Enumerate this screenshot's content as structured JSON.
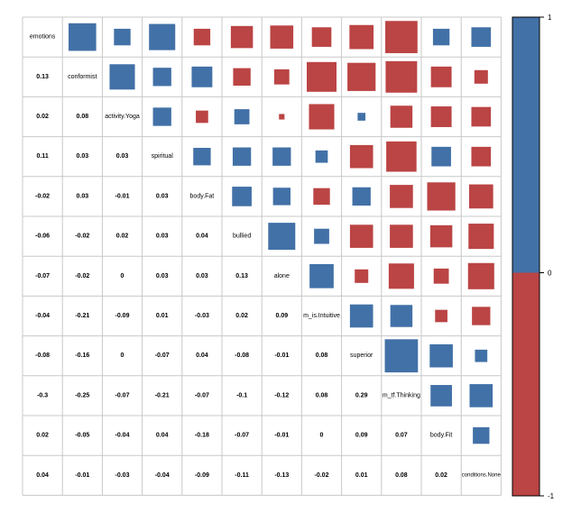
{
  "chart_data": {
    "type": "heatmap",
    "variables": [
      "emotions",
      "conformist",
      "activity.Yoga",
      "spiritual",
      "body.Fat",
      "bullied",
      "alone",
      "m_is.Intuitive",
      "superior",
      "m_tf.Thinking",
      "body.Fit",
      "conditions.None"
    ],
    "lower_labels": [
      [],
      [
        "0.13"
      ],
      [
        "0.02",
        "0.08"
      ],
      [
        "0.11",
        "0.03",
        "0.03"
      ],
      [
        "-0.02",
        "0.03",
        "-0.01",
        "0.03"
      ],
      [
        "-0.06",
        "-0.02",
        "0.02",
        "0.03",
        "0.04"
      ],
      [
        "-0.07",
        "-0.02",
        "0",
        "0.03",
        "0.03",
        "0.13"
      ],
      [
        "-0.04",
        "-0.21",
        "-0.09",
        "0.01",
        "-0.03",
        "0.02",
        "0.09"
      ],
      [
        "-0.08",
        "-0.16",
        "0",
        "-0.07",
        "0.04",
        "-0.08",
        "-0.01",
        "0.08"
      ],
      [
        "-0.3",
        "-0.25",
        "-0.07",
        "-0.21",
        "-0.07",
        "-0.1",
        "-0.12",
        "0.08",
        "0.29"
      ],
      [
        "0.02",
        "-0.05",
        "-0.04",
        "0.04",
        "-0.18",
        "-0.07",
        "-0.01",
        "0",
        "0.09",
        "0.07"
      ],
      [
        "0.04",
        "-0.01",
        "-0.03",
        "-0.04",
        "-0.09",
        "-0.11",
        "-0.13",
        "-0.02",
        "0.01",
        "0.08",
        "0.02"
      ]
    ],
    "colorbar": {
      "range": [
        -1,
        1
      ],
      "tick_labels": [
        "1",
        "0",
        "-1"
      ],
      "positive_color": "#4271a7",
      "negative_color": "#bb4444"
    },
    "upper_marks": [
      [
        {
          "col": 1,
          "value": 0.5
        },
        {
          "col": 2,
          "value": 0.18
        },
        {
          "col": 3,
          "value": 0.45
        },
        {
          "col": 4,
          "value": -0.18
        },
        {
          "col": 5,
          "value": -0.32
        },
        {
          "col": 6,
          "value": -0.35
        },
        {
          "col": 7,
          "value": -0.25
        },
        {
          "col": 8,
          "value": -0.38
        },
        {
          "col": 9,
          "value": -0.68
        },
        {
          "col": 10,
          "value": 0.18
        },
        {
          "col": 11,
          "value": 0.25
        }
      ],
      [
        {
          "col": 2,
          "value": 0.42
        },
        {
          "col": 3,
          "value": 0.22
        },
        {
          "col": 4,
          "value": 0.28
        },
        {
          "col": 5,
          "value": -0.2
        },
        {
          "col": 6,
          "value": -0.15
        },
        {
          "col": 7,
          "value": -0.58
        },
        {
          "col": 8,
          "value": -0.52
        },
        {
          "col": 9,
          "value": -0.65
        },
        {
          "col": 10,
          "value": -0.28
        },
        {
          "col": 11,
          "value": -0.12
        }
      ],
      [
        {
          "col": 3,
          "value": 0.22
        },
        {
          "col": 4,
          "value": -0.1
        },
        {
          "col": 5,
          "value": 0.15
        },
        {
          "col": 6,
          "value": -0.02
        },
        {
          "col": 7,
          "value": -0.42
        },
        {
          "col": 8,
          "value": 0.04
        },
        {
          "col": 9,
          "value": -0.32
        },
        {
          "col": 10,
          "value": -0.28
        },
        {
          "col": 11,
          "value": -0.25
        }
      ],
      [
        {
          "col": 4,
          "value": 0.2
        },
        {
          "col": 5,
          "value": 0.22
        },
        {
          "col": 6,
          "value": 0.22
        },
        {
          "col": 7,
          "value": 0.1
        },
        {
          "col": 8,
          "value": -0.35
        },
        {
          "col": 9,
          "value": -0.6
        },
        {
          "col": 10,
          "value": 0.25
        },
        {
          "col": 11,
          "value": -0.25
        }
      ],
      [
        {
          "col": 5,
          "value": 0.25
        },
        {
          "col": 6,
          "value": 0.2
        },
        {
          "col": 7,
          "value": -0.18
        },
        {
          "col": 8,
          "value": 0.22
        },
        {
          "col": 9,
          "value": -0.35
        },
        {
          "col": 10,
          "value": -0.52
        },
        {
          "col": 11,
          "value": -0.38
        }
      ],
      [
        {
          "col": 6,
          "value": 0.48
        },
        {
          "col": 7,
          "value": 0.15
        },
        {
          "col": 8,
          "value": -0.35
        },
        {
          "col": 9,
          "value": -0.35
        },
        {
          "col": 10,
          "value": -0.32
        },
        {
          "col": 11,
          "value": -0.42
        }
      ],
      [
        {
          "col": 7,
          "value": 0.38
        },
        {
          "col": 8,
          "value": -0.12
        },
        {
          "col": 9,
          "value": -0.42
        },
        {
          "col": 10,
          "value": -0.15
        },
        {
          "col": 11,
          "value": -0.45
        }
      ],
      [
        {
          "col": 8,
          "value": 0.35
        },
        {
          "col": 9,
          "value": 0.32
        },
        {
          "col": 10,
          "value": -0.1
        },
        {
          "col": 11,
          "value": -0.22
        }
      ],
      [
        {
          "col": 9,
          "value": 0.72
        },
        {
          "col": 10,
          "value": 0.35
        },
        {
          "col": 11,
          "value": 0.1
        }
      ],
      [
        {
          "col": 10,
          "value": 0.3
        },
        {
          "col": 11,
          "value": 0.35
        }
      ],
      [
        {
          "col": 11,
          "value": 0.18
        }
      ]
    ]
  }
}
